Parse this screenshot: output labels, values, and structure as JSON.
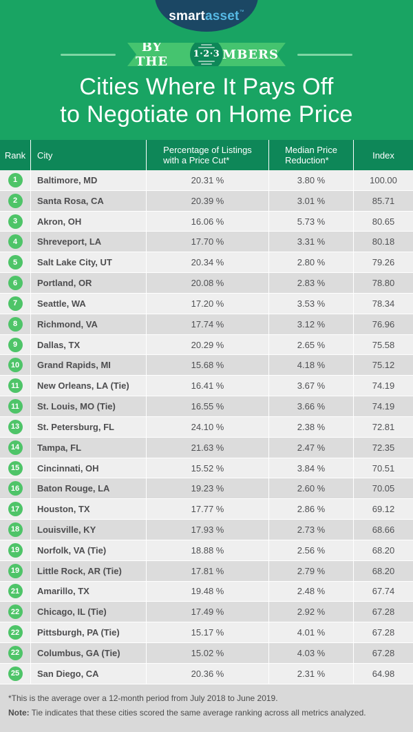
{
  "brand": {
    "smart": "smart",
    "asset": "asset",
    "tm": "™"
  },
  "banner": {
    "left": "BY THE",
    "circle": "1·2·3",
    "right": "NUMBERS"
  },
  "title": {
    "line1": "Cities Where It Pays Off",
    "line2": "to Negotiate on Home Price"
  },
  "header": {
    "rank": "Rank",
    "city": "City",
    "pct_line1": "Percentage of Listings",
    "pct_line2": "with a Price Cut*",
    "med_line1": "Median Price",
    "med_line2": "Reduction*",
    "index": "Index"
  },
  "chart_data": {
    "type": "table",
    "title": "Cities Where It Pays Off to Negotiate on Home Price",
    "columns": [
      "Rank",
      "City",
      "Percentage of Listings with a Price Cut*",
      "Median Price Reduction*",
      "Index"
    ],
    "rows": [
      [
        "1",
        "Baltimore, MD",
        "20.31 %",
        "3.80 %",
        "100.00"
      ],
      [
        "2",
        "Santa Rosa, CA",
        "20.39 %",
        "3.01 %",
        "85.71"
      ],
      [
        "3",
        "Akron, OH",
        "16.06 %",
        "5.73 %",
        "80.65"
      ],
      [
        "4",
        "Shreveport, LA",
        "17.70 %",
        "3.31 %",
        "80.18"
      ],
      [
        "5",
        "Salt Lake City, UT",
        "20.34 %",
        "2.80 %",
        "79.26"
      ],
      [
        "6",
        "Portland, OR",
        "20.08 %",
        "2.83 %",
        "78.80"
      ],
      [
        "7",
        "Seattle, WA",
        "17.20 %",
        "3.53 %",
        "78.34"
      ],
      [
        "8",
        "Richmond, VA",
        "17.74 %",
        "3.12 %",
        "76.96"
      ],
      [
        "9",
        "Dallas, TX",
        "20.29 %",
        "2.65 %",
        "75.58"
      ],
      [
        "10",
        "Grand Rapids, MI",
        "15.68 %",
        "4.18 %",
        "75.12"
      ],
      [
        "11",
        "New Orleans, LA (Tie)",
        "16.41 %",
        "3.67 %",
        "74.19"
      ],
      [
        "11",
        "St. Louis, MO (Tie)",
        "16.55 %",
        "3.66 %",
        "74.19"
      ],
      [
        "13",
        "St. Petersburg, FL",
        "24.10 %",
        "2.38 %",
        "72.81"
      ],
      [
        "14",
        "Tampa, FL",
        "21.63 %",
        "2.47 %",
        "72.35"
      ],
      [
        "15",
        "Cincinnati, OH",
        "15.52 %",
        "3.84 %",
        "70.51"
      ],
      [
        "16",
        "Baton Rouge, LA",
        "19.23 %",
        "2.60 %",
        "70.05"
      ],
      [
        "17",
        "Houston, TX",
        "17.77 %",
        "2.86 %",
        "69.12"
      ],
      [
        "18",
        "Louisville, KY",
        "17.93 %",
        "2.73 %",
        "68.66"
      ],
      [
        "19",
        "Norfolk, VA (Tie)",
        "18.88 %",
        "2.56 %",
        "68.20"
      ],
      [
        "19",
        "Little Rock, AR (Tie)",
        "17.81 %",
        "2.79 %",
        "68.20"
      ],
      [
        "21",
        "Amarillo, TX",
        "19.48 %",
        "2.48 %",
        "67.74"
      ],
      [
        "22",
        "Chicago, IL (Tie)",
        "17.49 %",
        "2.92 %",
        "67.28"
      ],
      [
        "22",
        "Pittsburgh, PA (Tie)",
        "15.17 %",
        "4.01 %",
        "67.28"
      ],
      [
        "22",
        "Columbus, GA (Tie)",
        "15.02 %",
        "4.03 %",
        "67.28"
      ],
      [
        "25",
        "San Diego, CA",
        "20.36 %",
        "2.31 %",
        "64.98"
      ]
    ]
  },
  "footnotes": {
    "asterisk": "*This is the average over a 12-month period from July 2018 to June 2019.",
    "note_label": "Note:",
    "note_text": " Tie indicates that these cities scored the same average ranking across all metrics analyzed."
  },
  "colors": {
    "bg_green": "#19a463",
    "ribbon_green": "#45c46f",
    "dark_green": "#0e8758",
    "badge_green": "#4ec468",
    "navy": "#1b4764",
    "logo_blue": "#56b9e4",
    "rule_green": "#7fd6a4",
    "row_light": "#efefef",
    "row_dark": "#dcdcdc",
    "footer_bg": "#d9d9d9",
    "text_dark": "#4f5053"
  }
}
